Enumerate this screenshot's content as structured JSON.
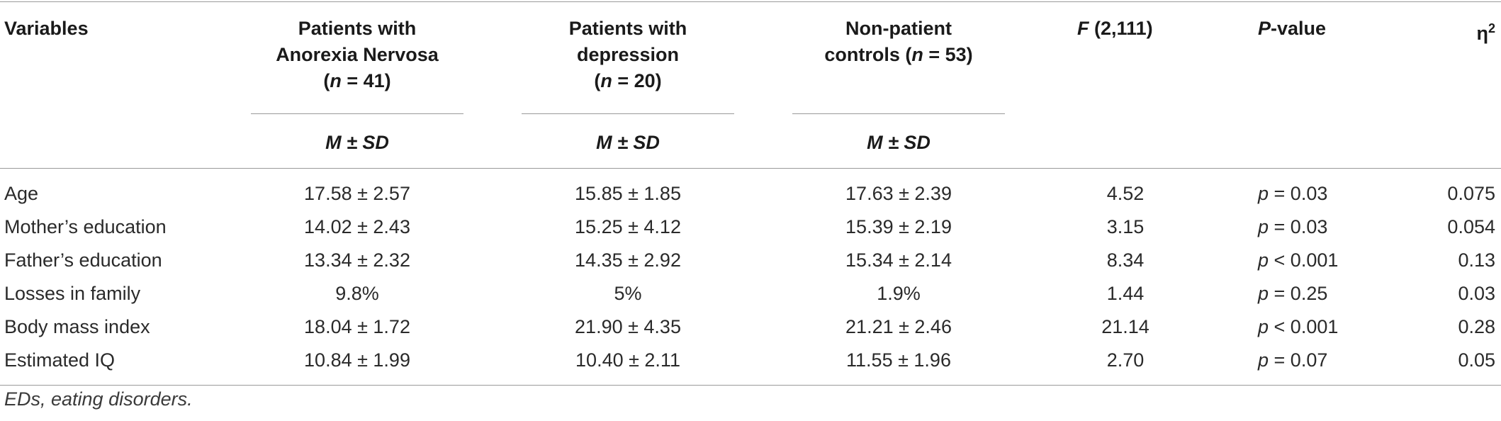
{
  "header": {
    "variables": "Variables",
    "col_an": [
      "Patients with",
      "Anorexia Nervosa",
      "(n = 41)"
    ],
    "col_dep": [
      "Patients with",
      "depression",
      "(n = 20)"
    ],
    "col_ctrl": [
      "Non-patient",
      "controls (n = 53)"
    ],
    "col_f": "F (2,111)",
    "col_p": "P-value",
    "col_eta": "η²",
    "stat_label": "M ± SD"
  },
  "rows": [
    {
      "variable": "Age",
      "an": "17.58 ± 2.57",
      "dep": "15.85 ± 1.85",
      "ctrl": "17.63 ± 2.39",
      "f": "4.52",
      "p_sym": "p",
      "p_rest": " = 0.03",
      "eta": "0.075"
    },
    {
      "variable": "Mother’s education",
      "an": "14.02 ± 2.43",
      "dep": "15.25 ± 4.12",
      "ctrl": "15.39 ± 2.19",
      "f": "3.15",
      "p_sym": "p",
      "p_rest": " = 0.03",
      "eta": "0.054"
    },
    {
      "variable": "Father’s education",
      "an": "13.34 ± 2.32",
      "dep": "14.35 ± 2.92",
      "ctrl": "15.34 ± 2.14",
      "f": "8.34",
      "p_sym": "p",
      "p_rest": " < 0.001",
      "eta": "0.13"
    },
    {
      "variable": "Losses in family",
      "an": "9.8%",
      "dep": "5%",
      "ctrl": "1.9%",
      "f": "1.44",
      "p_sym": "p",
      "p_rest": " = 0.25",
      "eta": "0.03"
    },
    {
      "variable": "Body mass index",
      "an": "18.04 ± 1.72",
      "dep": "21.90 ± 4.35",
      "ctrl": "21.21 ± 2.46",
      "f": "21.14",
      "p_sym": "p",
      "p_rest": " < 0.001",
      "eta": "0.28"
    },
    {
      "variable": "Estimated IQ",
      "an": "10.84 ± 1.99",
      "dep": "10.40 ± 2.11",
      "ctrl": "11.55 ± 1.96",
      "f": "2.70",
      "p_sym": "p",
      "p_rest": " = 0.07",
      "eta": "0.05"
    }
  ],
  "footnote": "EDs, eating disorders."
}
